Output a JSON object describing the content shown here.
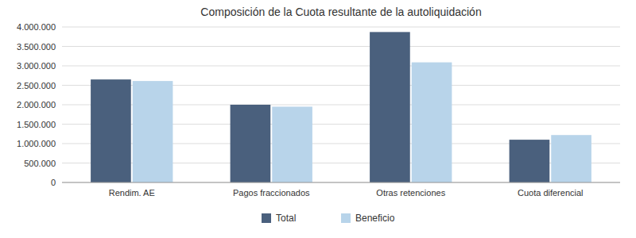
{
  "chart_data": {
    "type": "bar",
    "title": "Composición de la Cuota resultante de la autoliquidación",
    "categories": [
      "Rendim. AE",
      "Pagos fraccionados",
      "Otras retenciones",
      "Cuota diferencial"
    ],
    "series": [
      {
        "name": "Total",
        "color": "#4a607d",
        "values": [
          2650000,
          2000000,
          3870000,
          1100000
        ]
      },
      {
        "name": "Beneficio",
        "color": "#b8d4ea",
        "values": [
          2610000,
          1950000,
          3090000,
          1220000
        ]
      }
    ],
    "ylim": [
      0,
      4000000
    ],
    "yticks": [
      0,
      {
        "value": 500000,
        "label": "500.000"
      },
      {
        "value": 1000000,
        "label": "1.000.000"
      },
      {
        "value": 1500000,
        "label": "1.500.000"
      },
      {
        "value": 2000000,
        "label": "2.000.000"
      },
      {
        "value": 2500000,
        "label": "2.500.000"
      },
      {
        "value": 3000000,
        "label": "3.000.000"
      },
      {
        "value": 3500000,
        "label": "3.500.000"
      },
      {
        "value": 4000000,
        "label": "4.000.000"
      }
    ],
    "grid": true,
    "legend": "bottom"
  }
}
